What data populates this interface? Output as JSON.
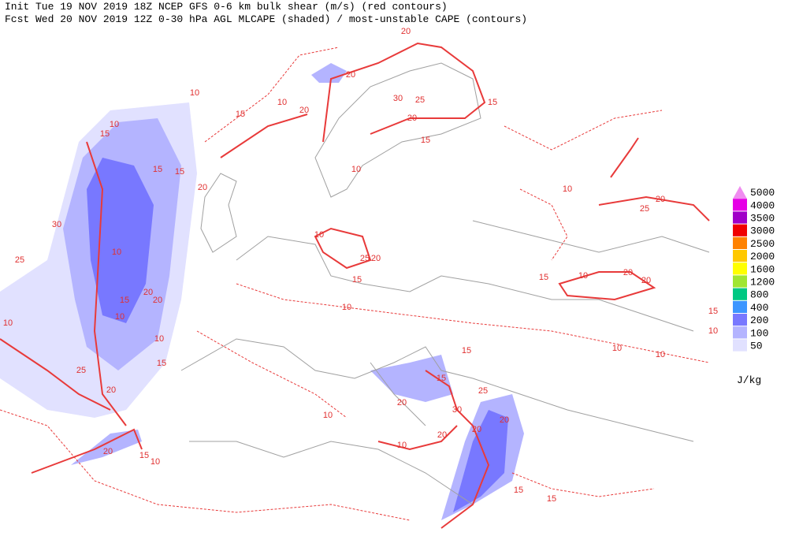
{
  "header": {
    "line1": "Init  Tue 19 NOV 2019 18Z  NCEP GFS 0-6 km bulk shear (m/s) (red contours)",
    "line2": "Fcst Wed 20 NOV 2019 12Z  0-30 hPa AGL MLCAPE (shaded) / most-unstable CAPE (contours)"
  },
  "legend": {
    "unit": "J/kg",
    "levels": [
      {
        "value": 5000,
        "color": "#f08cf0"
      },
      {
        "value": 4000,
        "color": "#e600e6"
      },
      {
        "value": 3500,
        "color": "#a000c8"
      },
      {
        "value": 3000,
        "color": "#f00000"
      },
      {
        "value": 2500,
        "color": "#ff8200"
      },
      {
        "value": 2000,
        "color": "#ffc800"
      },
      {
        "value": 1600,
        "color": "#ffff00"
      },
      {
        "value": 1200,
        "color": "#a0e632"
      },
      {
        "value": 800,
        "color": "#00c882"
      },
      {
        "value": 400,
        "color": "#3c96ff"
      },
      {
        "value": 200,
        "color": "#7878ff"
      },
      {
        "value": 100,
        "color": "#b4b4ff"
      },
      {
        "value": 50,
        "color": "#e1e1ff"
      }
    ]
  },
  "contour_labels": [
    10,
    15,
    15,
    15,
    20,
    10,
    30,
    25,
    15,
    10,
    20,
    20,
    25,
    20,
    10,
    15,
    20,
    15,
    10,
    10,
    10,
    20,
    15,
    20,
    20,
    30,
    25,
    15,
    20,
    15,
    10,
    10,
    15,
    10,
    25,
    20,
    10,
    25,
    20,
    15,
    10,
    20,
    20,
    10,
    10,
    15,
    15,
    25,
    20,
    30,
    20,
    20,
    20,
    10,
    15,
    15,
    10,
    10,
    15,
    10
  ]
}
